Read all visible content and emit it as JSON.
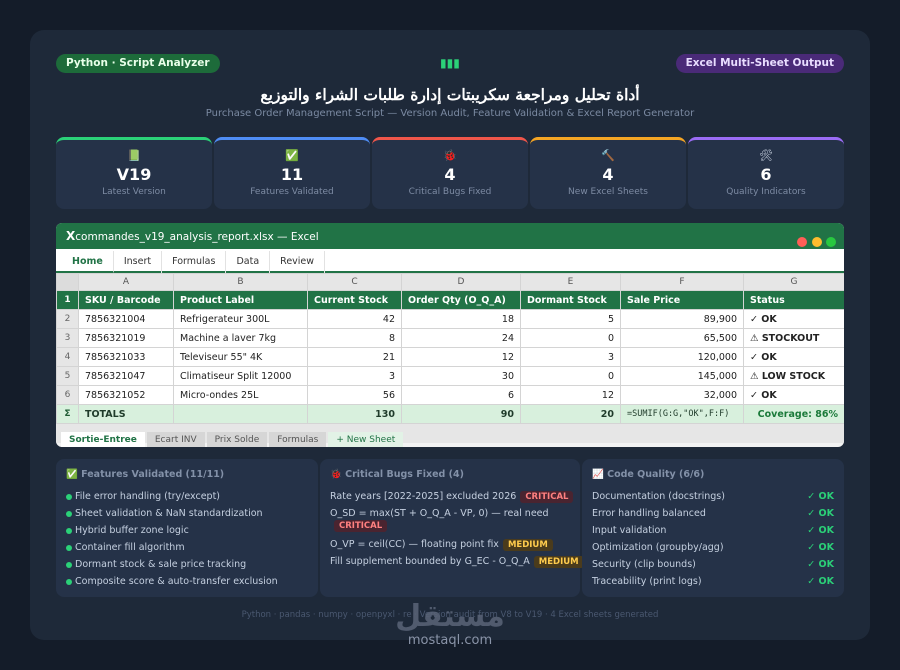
{
  "header": {
    "left_pill": "Python · Script Analyzer",
    "right_pill": "Excel Multi-Sheet Output",
    "top_icon": "chart-icon",
    "title": "أداة تحليل ومراجعة سكريبتات إدارة طلبات الشراء والتوزيع",
    "subtitle": "Purchase Order Management Script — Version Audit, Feature Validation & Excel Report Generator"
  },
  "stats": [
    {
      "icon": "📗",
      "value": "V19",
      "label": "Latest Version",
      "color": "#2bd178"
    },
    {
      "icon": "✅",
      "value": "11",
      "label": "Features Validated",
      "color": "#4f8df5"
    },
    {
      "icon": "🐞",
      "value": "4",
      "label": "Critical Bugs Fixed",
      "color": "#f0564a"
    },
    {
      "icon": "🔨",
      "value": "4",
      "label": "New Excel Sheets",
      "color": "#f5a524"
    },
    {
      "icon": "🛠",
      "value": "6",
      "label": "Quality Indicators",
      "color": "#9b6cf5"
    }
  ],
  "excel": {
    "logo": "X",
    "filename": "commandes_v19_analysis_report.xlsx — Excel",
    "ribbon_tabs": [
      "Home",
      "Insert",
      "Formulas",
      "Data",
      "Review"
    ],
    "col_letters": [
      "A",
      "B",
      "C",
      "D",
      "E",
      "F",
      "G"
    ],
    "headers": [
      "SKU / Barcode",
      "Product Label",
      "Current Stock",
      "Order Qty (O_Q_A)",
      "Dormant Stock",
      "Sale Price",
      "Status"
    ],
    "rows": [
      {
        "n": "2",
        "sku": "7856321004",
        "label": "Refrigerateur 300L",
        "stock": "42",
        "qty": "18",
        "dormant": "5",
        "price": "89,900",
        "status": "✓ OK"
      },
      {
        "n": "3",
        "sku": "7856321019",
        "label": "Machine a laver 7kg",
        "stock": "8",
        "qty": "24",
        "dormant": "0",
        "price": "65,500",
        "status": "⚠ STOCKOUT"
      },
      {
        "n": "4",
        "sku": "7856321033",
        "label": "Televiseur 55\" 4K",
        "stock": "21",
        "qty": "12",
        "dormant": "3",
        "price": "120,000",
        "status": "✓ OK"
      },
      {
        "n": "5",
        "sku": "7856321047",
        "label": "Climatiseur Split 12000",
        "stock": "3",
        "qty": "30",
        "dormant": "0",
        "price": "145,000",
        "status": "⚠ LOW STOCK"
      },
      {
        "n": "6",
        "sku": "7856321052",
        "label": "Micro-ondes 25L",
        "stock": "56",
        "qty": "6",
        "dormant": "12",
        "price": "32,000",
        "status": "✓ OK"
      }
    ],
    "totals": {
      "sigma": "Σ",
      "label": "TOTALS",
      "stock": "130",
      "qty": "90",
      "dormant": "20",
      "formula": "=SUMIF(G:G,\"OK\",F:F)",
      "coverage": "Coverage: 86%"
    },
    "sheet_tabs": [
      "Sortie-Entree",
      "Ecart INV",
      "Prix Solde",
      "Formulas",
      "+ New Sheet"
    ]
  },
  "panels": {
    "features": {
      "title": "✅ Features Validated (11/11)",
      "items": [
        "File error handling (try/except)",
        "Sheet validation & NaN standardization",
        "Hybrid buffer zone logic",
        "Container fill algorithm",
        "Dormant stock & sale price tracking",
        "Composite score & auto-transfer exclusion"
      ]
    },
    "bugs": {
      "title": "🐞 Critical Bugs Fixed (4)",
      "items": [
        {
          "text": "Rate years [2022-2025] excluded 2026",
          "severity": "CRITICAL"
        },
        {
          "text": "O_SD = max(ST + O_Q_A - VP, 0) — real need",
          "severity": "CRITICAL"
        },
        {
          "text": "O_VP = ceil(CC) — floating point fix",
          "severity": "MEDIUM"
        },
        {
          "text": "Fill supplement bounded by G_EC - O_Q_A",
          "severity": "MEDIUM"
        }
      ]
    },
    "quality": {
      "title": "📈 Code Quality (6/6)",
      "items": [
        {
          "label": "Documentation (docstrings)",
          "status": "✓ OK"
        },
        {
          "label": "Error handling balanced",
          "status": "✓ OK"
        },
        {
          "label": "Input validation",
          "status": "✓ OK"
        },
        {
          "label": "Optimization (groupby/agg)",
          "status": "✓ OK"
        },
        {
          "label": "Security (clip bounds)",
          "status": "✓ OK"
        },
        {
          "label": "Traceability (print logs)",
          "status": "✓ OK"
        }
      ]
    }
  },
  "footer": "Python · pandas · numpy · openpyxl · re · Version audit from V8 to V19 · 4 Excel sheets generated",
  "watermark": {
    "arabic": "مستقل",
    "latin": "mostaql.com"
  }
}
